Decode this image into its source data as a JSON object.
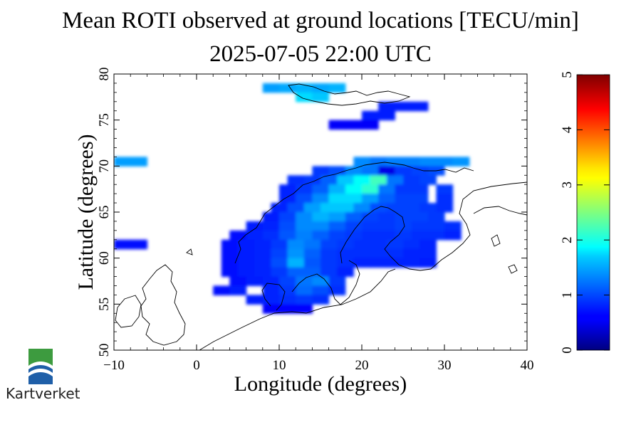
{
  "chart_data": {
    "type": "heatmap",
    "title": "Mean ROTI observed at ground locations [TECU/min]",
    "subtitle": "2025-07-05 22:00 UTC",
    "xlabel": "Longitude (degrees)",
    "ylabel": "Latitude (degrees)",
    "xlim": [
      -10,
      40
    ],
    "ylim": [
      50,
      80
    ],
    "xticks": [
      "−10",
      "0",
      "10",
      "20",
      "30",
      "40"
    ],
    "yticks": [
      "50",
      "55",
      "60",
      "65",
      "70",
      "75",
      "80"
    ],
    "colorbar": {
      "range": [
        0,
        5
      ],
      "ticks": [
        "0",
        "1",
        "2",
        "3",
        "4",
        "5"
      ],
      "colormap": "jet"
    },
    "cell_size_deg": {
      "lon": 2,
      "lat": 1
    },
    "cells": [
      {
        "lon": 9,
        "lat": 78.5,
        "value": 1.4
      },
      {
        "lon": 11,
        "lat": 78.5,
        "value": 1.45
      },
      {
        "lon": 13,
        "lat": 78.5,
        "value": 1.5
      },
      {
        "lon": 15,
        "lat": 78.5,
        "value": 1.45
      },
      {
        "lon": 17,
        "lat": 78.5,
        "value": 1.5
      },
      {
        "lon": 13,
        "lat": 77.5,
        "value": 1.7
      },
      {
        "lon": 15,
        "lat": 77.5,
        "value": 1.6
      },
      {
        "lon": 23,
        "lat": 76.5,
        "value": 0.75
      },
      {
        "lon": 25,
        "lat": 76.5,
        "value": 0.75
      },
      {
        "lon": 27,
        "lat": 76.5,
        "value": 0.75
      },
      {
        "lon": 21,
        "lat": 75.5,
        "value": 0.75
      },
      {
        "lon": 23,
        "lat": 75.5,
        "value": 0.75
      },
      {
        "lon": 17,
        "lat": 74.5,
        "value": 0.6
      },
      {
        "lon": 19,
        "lat": 74.5,
        "value": 0.6
      },
      {
        "lon": 21,
        "lat": 74.5,
        "value": 0.6
      },
      {
        "lon": -9,
        "lat": 70.5,
        "value": 1.4
      },
      {
        "lon": -7,
        "lat": 70.5,
        "value": 1.4
      },
      {
        "lon": -7,
        "lat": 61.5,
        "value": 0.7
      },
      {
        "lon": -9,
        "lat": 61.5,
        "value": 0.7
      },
      {
        "lon": 20,
        "lat": 70.5,
        "value": 1.3
      },
      {
        "lon": 22,
        "lat": 70.5,
        "value": 1.2
      },
      {
        "lon": 24,
        "lat": 70.5,
        "value": 1.25
      },
      {
        "lon": 26,
        "lat": 70.5,
        "value": 1.25
      },
      {
        "lon": 28,
        "lat": 70.5,
        "value": 1.3
      },
      {
        "lon": 30,
        "lat": 70.5,
        "value": 1.3
      },
      {
        "lon": 32,
        "lat": 70.5,
        "value": 1.35
      },
      {
        "lon": 15,
        "lat": 69.5,
        "value": 0.9
      },
      {
        "lon": 17,
        "lat": 69.5,
        "value": 1.0
      },
      {
        "lon": 19,
        "lat": 69.5,
        "value": 1.3
      },
      {
        "lon": 21,
        "lat": 69.5,
        "value": 1.2
      },
      {
        "lon": 23,
        "lat": 69.5,
        "value": 0.5
      },
      {
        "lon": 25,
        "lat": 69.5,
        "value": 0.9
      },
      {
        "lon": 27,
        "lat": 69.5,
        "value": 0.95
      },
      {
        "lon": 29,
        "lat": 69.5,
        "value": 1.0
      },
      {
        "lon": 12,
        "lat": 68.5,
        "value": 0.85
      },
      {
        "lon": 14,
        "lat": 68.5,
        "value": 0.9
      },
      {
        "lon": 16,
        "lat": 68.5,
        "value": 1.1
      },
      {
        "lon": 18,
        "lat": 68.5,
        "value": 1.6
      },
      {
        "lon": 20,
        "lat": 68.5,
        "value": 1.9
      },
      {
        "lon": 22,
        "lat": 68.5,
        "value": 2.2
      },
      {
        "lon": 24,
        "lat": 68.5,
        "value": 1.2
      },
      {
        "lon": 26,
        "lat": 68.5,
        "value": 0.9
      },
      {
        "lon": 28,
        "lat": 68.5,
        "value": 0.95
      },
      {
        "lon": 11,
        "lat": 67.5,
        "value": 0.8
      },
      {
        "lon": 13,
        "lat": 67.5,
        "value": 0.9
      },
      {
        "lon": 15,
        "lat": 67.5,
        "value": 1.1
      },
      {
        "lon": 17,
        "lat": 67.5,
        "value": 1.5
      },
      {
        "lon": 19,
        "lat": 67.5,
        "value": 1.9
      },
      {
        "lon": 21,
        "lat": 67.5,
        "value": 2.1
      },
      {
        "lon": 23,
        "lat": 67.5,
        "value": 1.2
      },
      {
        "lon": 25,
        "lat": 67.5,
        "value": 0.9
      },
      {
        "lon": 27,
        "lat": 67.5,
        "value": 0.9
      },
      {
        "lon": 30,
        "lat": 67.5,
        "value": 0.9
      },
      {
        "lon": 11,
        "lat": 66.5,
        "value": 0.8
      },
      {
        "lon": 13,
        "lat": 66.5,
        "value": 1.0
      },
      {
        "lon": 15,
        "lat": 66.5,
        "value": 1.3
      },
      {
        "lon": 17,
        "lat": 66.5,
        "value": 1.7
      },
      {
        "lon": 19,
        "lat": 66.5,
        "value": 1.7
      },
      {
        "lon": 21,
        "lat": 66.5,
        "value": 1.4
      },
      {
        "lon": 23,
        "lat": 66.5,
        "value": 1.1
      },
      {
        "lon": 25,
        "lat": 66.5,
        "value": 0.95
      },
      {
        "lon": 27,
        "lat": 66.5,
        "value": 0.95
      },
      {
        "lon": 30,
        "lat": 66.5,
        "value": 0.85
      },
      {
        "lon": 10,
        "lat": 65.5,
        "value": 0.8
      },
      {
        "lon": 12,
        "lat": 65.5,
        "value": 1.0
      },
      {
        "lon": 14,
        "lat": 65.5,
        "value": 1.4
      },
      {
        "lon": 16,
        "lat": 65.5,
        "value": 1.6
      },
      {
        "lon": 18,
        "lat": 65.5,
        "value": 1.6
      },
      {
        "lon": 20,
        "lat": 65.5,
        "value": 1.3
      },
      {
        "lon": 22,
        "lat": 65.5,
        "value": 1.0
      },
      {
        "lon": 24,
        "lat": 65.5,
        "value": 0.95
      },
      {
        "lon": 26,
        "lat": 65.5,
        "value": 0.95
      },
      {
        "lon": 28,
        "lat": 65.5,
        "value": 0.9
      },
      {
        "lon": 30,
        "lat": 65.5,
        "value": 0.85
      },
      {
        "lon": 9,
        "lat": 64.5,
        "value": 0.75
      },
      {
        "lon": 11,
        "lat": 64.5,
        "value": 0.95
      },
      {
        "lon": 13,
        "lat": 64.5,
        "value": 1.3
      },
      {
        "lon": 15,
        "lat": 64.5,
        "value": 1.5
      },
      {
        "lon": 17,
        "lat": 64.5,
        "value": 1.4
      },
      {
        "lon": 19,
        "lat": 64.5,
        "value": 1.1
      },
      {
        "lon": 21,
        "lat": 64.5,
        "value": 0.95
      },
      {
        "lon": 23,
        "lat": 64.5,
        "value": 0.9
      },
      {
        "lon": 25,
        "lat": 64.5,
        "value": 0.95
      },
      {
        "lon": 27,
        "lat": 64.5,
        "value": 0.95
      },
      {
        "lon": 29,
        "lat": 64.5,
        "value": 0.9
      },
      {
        "lon": 7,
        "lat": 63.5,
        "value": 0.75
      },
      {
        "lon": 9,
        "lat": 63.5,
        "value": 0.8
      },
      {
        "lon": 11,
        "lat": 63.5,
        "value": 1.0
      },
      {
        "lon": 13,
        "lat": 63.5,
        "value": 1.3
      },
      {
        "lon": 15,
        "lat": 63.5,
        "value": 1.3
      },
      {
        "lon": 17,
        "lat": 63.5,
        "value": 1.1
      },
      {
        "lon": 19,
        "lat": 63.5,
        "value": 0.95
      },
      {
        "lon": 21,
        "lat": 63.5,
        "value": 0.9
      },
      {
        "lon": 23,
        "lat": 63.5,
        "value": 0.9
      },
      {
        "lon": 25,
        "lat": 63.5,
        "value": 0.95
      },
      {
        "lon": 27,
        "lat": 63.5,
        "value": 0.9
      },
      {
        "lon": 29,
        "lat": 63.5,
        "value": 0.9
      },
      {
        "lon": 31,
        "lat": 63.5,
        "value": 0.85
      },
      {
        "lon": 5,
        "lat": 62.5,
        "value": 0.7
      },
      {
        "lon": 7,
        "lat": 62.5,
        "value": 0.8
      },
      {
        "lon": 9,
        "lat": 62.5,
        "value": 0.85
      },
      {
        "lon": 11,
        "lat": 62.5,
        "value": 1.05
      },
      {
        "lon": 13,
        "lat": 62.5,
        "value": 1.25
      },
      {
        "lon": 15,
        "lat": 62.5,
        "value": 1.1
      },
      {
        "lon": 17,
        "lat": 62.5,
        "value": 0.95
      },
      {
        "lon": 19,
        "lat": 62.5,
        "value": 0.9
      },
      {
        "lon": 21,
        "lat": 62.5,
        "value": 0.85
      },
      {
        "lon": 23,
        "lat": 62.5,
        "value": 0.85
      },
      {
        "lon": 25,
        "lat": 62.5,
        "value": 0.9
      },
      {
        "lon": 27,
        "lat": 62.5,
        "value": 0.85
      },
      {
        "lon": 29,
        "lat": 62.5,
        "value": 0.85
      },
      {
        "lon": 31,
        "lat": 62.5,
        "value": 0.8
      },
      {
        "lon": 4,
        "lat": 61.5,
        "value": 0.7
      },
      {
        "lon": 6,
        "lat": 61.5,
        "value": 0.75
      },
      {
        "lon": 8,
        "lat": 61.5,
        "value": 0.8
      },
      {
        "lon": 10,
        "lat": 61.5,
        "value": 0.9
      },
      {
        "lon": 12,
        "lat": 61.5,
        "value": 1.3
      },
      {
        "lon": 14,
        "lat": 61.5,
        "value": 1.2
      },
      {
        "lon": 16,
        "lat": 61.5,
        "value": 0.95
      },
      {
        "lon": 18,
        "lat": 61.5,
        "value": 0.9
      },
      {
        "lon": 20,
        "lat": 61.5,
        "value": 0.85
      },
      {
        "lon": 22,
        "lat": 61.5,
        "value": 0.85
      },
      {
        "lon": 24,
        "lat": 61.5,
        "value": 0.9
      },
      {
        "lon": 26,
        "lat": 61.5,
        "value": 0.85
      },
      {
        "lon": 28,
        "lat": 61.5,
        "value": 0.8
      },
      {
        "lon": 4,
        "lat": 60.5,
        "value": 0.7
      },
      {
        "lon": 6,
        "lat": 60.5,
        "value": 0.75
      },
      {
        "lon": 8,
        "lat": 60.5,
        "value": 0.8
      },
      {
        "lon": 10,
        "lat": 60.5,
        "value": 0.95
      },
      {
        "lon": 12,
        "lat": 60.5,
        "value": 1.35
      },
      {
        "lon": 14,
        "lat": 60.5,
        "value": 1.1
      },
      {
        "lon": 16,
        "lat": 60.5,
        "value": 0.9
      },
      {
        "lon": 18,
        "lat": 60.5,
        "value": 0.85
      },
      {
        "lon": 20,
        "lat": 60.5,
        "value": 0.85
      },
      {
        "lon": 22,
        "lat": 60.5,
        "value": 0.85
      },
      {
        "lon": 24,
        "lat": 60.5,
        "value": 0.85
      },
      {
        "lon": 26,
        "lat": 60.5,
        "value": 0.8
      },
      {
        "lon": 28,
        "lat": 60.5,
        "value": 0.8
      },
      {
        "lon": 4,
        "lat": 59.5,
        "value": 0.7
      },
      {
        "lon": 6,
        "lat": 59.5,
        "value": 0.75
      },
      {
        "lon": 8,
        "lat": 59.5,
        "value": 0.8
      },
      {
        "lon": 10,
        "lat": 59.5,
        "value": 1.0
      },
      {
        "lon": 12,
        "lat": 59.5,
        "value": 1.5
      },
      {
        "lon": 14,
        "lat": 59.5,
        "value": 1.05
      },
      {
        "lon": 16,
        "lat": 59.5,
        "value": 0.9
      },
      {
        "lon": 18,
        "lat": 59.5,
        "value": 0.85
      },
      {
        "lon": 20,
        "lat": 59.5,
        "value": 0.8
      },
      {
        "lon": 22,
        "lat": 59.5,
        "value": 0.8
      },
      {
        "lon": 24,
        "lat": 59.5,
        "value": 0.8
      },
      {
        "lon": 26,
        "lat": 59.5,
        "value": 0.8
      },
      {
        "lon": 28,
        "lat": 59.5,
        "value": 0.75
      },
      {
        "lon": 4,
        "lat": 58.5,
        "value": 0.7
      },
      {
        "lon": 6,
        "lat": 58.5,
        "value": 0.75
      },
      {
        "lon": 8,
        "lat": 58.5,
        "value": 0.8
      },
      {
        "lon": 10,
        "lat": 58.5,
        "value": 0.9
      },
      {
        "lon": 12,
        "lat": 58.5,
        "value": 1.1
      },
      {
        "lon": 14,
        "lat": 58.5,
        "value": 1.1
      },
      {
        "lon": 16,
        "lat": 58.5,
        "value": 0.9
      },
      {
        "lon": 18,
        "lat": 58.5,
        "value": 0.8
      },
      {
        "lon": 5,
        "lat": 57.5,
        "value": 0.7
      },
      {
        "lon": 7,
        "lat": 57.5,
        "value": 0.75
      },
      {
        "lon": 9,
        "lat": 57.5,
        "value": 0.8
      },
      {
        "lon": 11,
        "lat": 57.5,
        "value": 0.95
      },
      {
        "lon": 13,
        "lat": 57.5,
        "value": 1.2
      },
      {
        "lon": 15,
        "lat": 57.5,
        "value": 1.3
      },
      {
        "lon": 17,
        "lat": 57.5,
        "value": 0.9
      },
      {
        "lon": 3,
        "lat": 56.5,
        "value": 0.7
      },
      {
        "lon": 5,
        "lat": 56.5,
        "value": 0.75
      },
      {
        "lon": 9,
        "lat": 56.5,
        "value": 0.8
      },
      {
        "lon": 11,
        "lat": 56.5,
        "value": 0.9
      },
      {
        "lon": 13,
        "lat": 56.5,
        "value": 1.15
      },
      {
        "lon": 15,
        "lat": 56.5,
        "value": 1.0
      },
      {
        "lon": 17,
        "lat": 56.5,
        "value": 0.85
      },
      {
        "lon": 7,
        "lat": 55.5,
        "value": 0.75
      },
      {
        "lon": 9,
        "lat": 55.5,
        "value": 0.8
      },
      {
        "lon": 11,
        "lat": 55.5,
        "value": 0.85
      },
      {
        "lon": 13,
        "lat": 55.5,
        "value": 0.9
      },
      {
        "lon": 15,
        "lat": 55.5,
        "value": 0.85
      },
      {
        "lon": 9,
        "lat": 54.5,
        "value": 0.6
      },
      {
        "lon": 11,
        "lat": 54.5,
        "value": 0.65
      },
      {
        "lon": 13,
        "lat": 54.5,
        "value": 0.65
      }
    ]
  },
  "logo": {
    "name": "Kartverket",
    "colors": {
      "green": "#3d9b3f",
      "blue": "#1f5fa8"
    },
    "icon": "kartverket-logo-icon"
  }
}
